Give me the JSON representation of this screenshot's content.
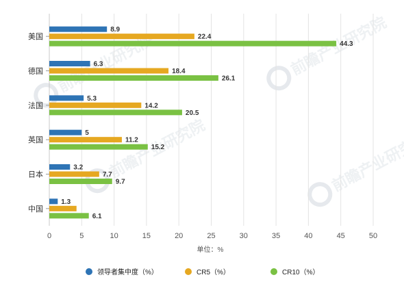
{
  "chart_data": {
    "type": "bar",
    "orientation": "horizontal",
    "categories": [
      "美国",
      "德国",
      "法国",
      "英国",
      "日本",
      "中国"
    ],
    "series": [
      {
        "name": "领导者集中度（%）",
        "color": "#2e74b5",
        "values": [
          8.9,
          6.3,
          5.3,
          5,
          3.2,
          1.3
        ]
      },
      {
        "name": "CR5（%）",
        "color": "#e6a821",
        "values": [
          22.4,
          18.4,
          14.2,
          11.2,
          7.7,
          4.2
        ]
      },
      {
        "name": "CR10（%）",
        "color": "#7ac143",
        "values": [
          44.3,
          26.1,
          20.5,
          15.2,
          9.7,
          6.1
        ]
      }
    ],
    "data_labels": [
      [
        "8.9",
        "6.3",
        "5.3",
        "5",
        "3.2",
        "1.3"
      ],
      [
        "22.4",
        "18.4",
        "14.2",
        "11.2",
        "7.7",
        ""
      ],
      [
        "44.3",
        "26.1",
        "20.5",
        "15.2",
        "9.7",
        "6.1"
      ]
    ],
    "xlim": [
      0,
      50
    ],
    "xticks": [
      "0",
      "5",
      "10",
      "15",
      "20",
      "25",
      "30",
      "35",
      "40",
      "45",
      "50"
    ],
    "xlabel": "单位：%",
    "grid": true,
    "legend_position": "bottom"
  },
  "watermark": {
    "text": "前瞻产业研究院",
    "icon": "logo-circle-icon"
  }
}
